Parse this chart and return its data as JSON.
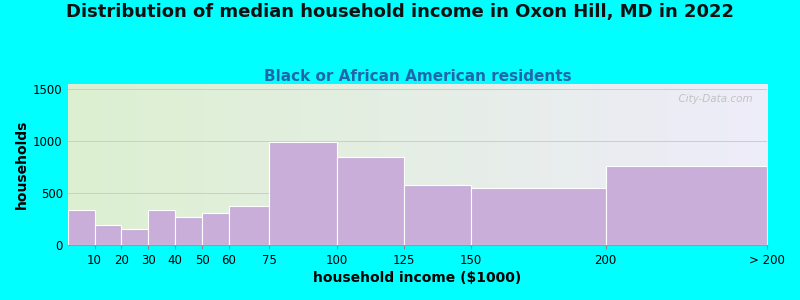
{
  "title": "Distribution of median household income in Oxon Hill, MD in 2022",
  "subtitle": "Black or African American residents",
  "xlabel": "household income ($1000)",
  "ylabel": "households",
  "background_color": "#00FFFF",
  "bar_color": "#c8aed8",
  "categories": [
    "10",
    "20",
    "30",
    "40",
    "50",
    "60",
    "75",
    "100",
    "125",
    "150",
    "200",
    "> 200"
  ],
  "left_edges": [
    0,
    10,
    20,
    30,
    40,
    50,
    60,
    75,
    100,
    125,
    150,
    200
  ],
  "widths": [
    10,
    10,
    10,
    10,
    10,
    10,
    15,
    25,
    25,
    25,
    50,
    60
  ],
  "values": [
    340,
    190,
    155,
    340,
    265,
    310,
    370,
    990,
    845,
    580,
    550,
    760
  ],
  "ylim": [
    0,
    1550
  ],
  "yticks": [
    0,
    500,
    1000,
    1500
  ],
  "title_fontsize": 13,
  "subtitle_fontsize": 11,
  "axis_label_fontsize": 10,
  "tick_fontsize": 8.5,
  "watermark_text": "  City-Data.com",
  "grid_color": "#cccccc",
  "tick_labels_x": [
    "10",
    "20",
    "30",
    "40",
    "50",
    "60",
    "75",
    "100",
    "125",
    "150",
    "200",
    "> 200"
  ],
  "tick_positions_x": [
    10,
    20,
    30,
    40,
    50,
    60,
    75,
    100,
    125,
    150,
    200,
    260
  ]
}
